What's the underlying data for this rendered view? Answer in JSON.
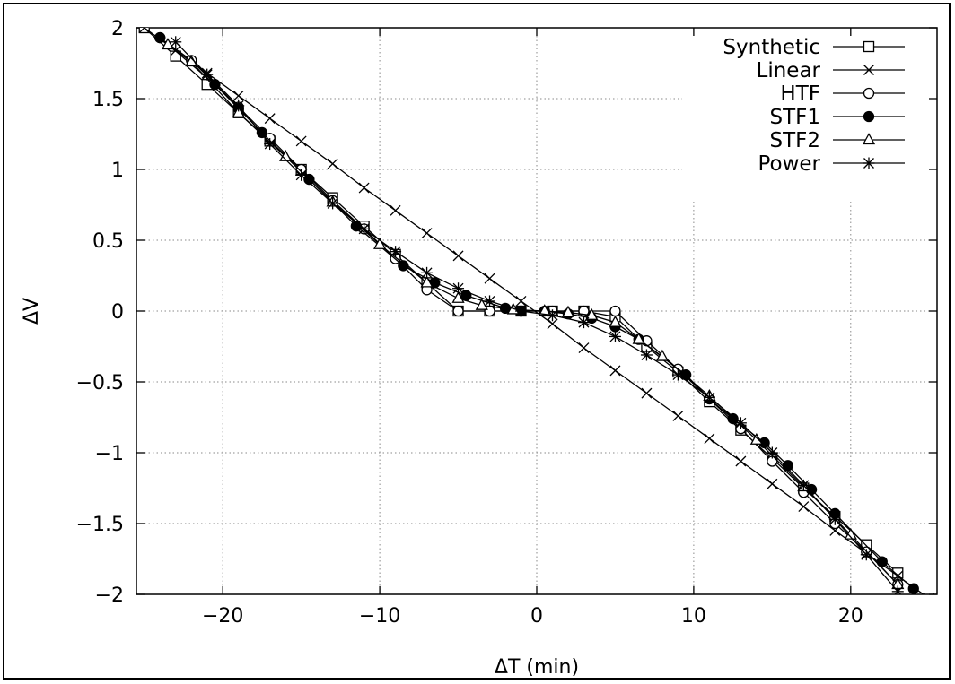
{
  "chart_data": {
    "type": "line",
    "title": "",
    "xlabel": "ΔT (min)",
    "ylabel": "ΔV",
    "xlim": [
      -25.5,
      25.5
    ],
    "ylim": [
      -2,
      2
    ],
    "xticks": [
      -20,
      -10,
      0,
      10,
      20
    ],
    "yticks": [
      2,
      1.5,
      1,
      0.5,
      0,
      -0.5,
      -1,
      -1.5,
      -2
    ],
    "xtick_labels": [
      "−20",
      "−10",
      "0",
      "10",
      "20"
    ],
    "ytick_labels": [
      "2",
      "1.5",
      "1",
      "0.5",
      "0",
      "−0.5",
      "−1",
      "−1.5",
      "−2"
    ],
    "grid": true,
    "legend_position": "top-right",
    "series": [
      {
        "name": "Synthetic",
        "marker": "square",
        "points": [
          [
            -25,
            2
          ],
          [
            -23,
            1.8
          ],
          [
            -21,
            1.6
          ],
          [
            -19,
            1.4
          ],
          [
            -17,
            1.2
          ],
          [
            -15,
            1
          ],
          [
            -13,
            0.8
          ],
          [
            -11,
            0.6
          ],
          [
            -9,
            0.4
          ],
          [
            -7,
            0.2
          ],
          [
            -5,
            0
          ],
          [
            -3,
            0
          ],
          [
            -1,
            0
          ],
          [
            1,
            0
          ],
          [
            3,
            0
          ],
          [
            5,
            -0.04
          ],
          [
            7,
            -0.25
          ],
          [
            9,
            -0.43
          ],
          [
            11,
            -0.64
          ],
          [
            13,
            -0.84
          ],
          [
            15,
            -1.04
          ],
          [
            17,
            -1.25
          ],
          [
            19,
            -1.45
          ],
          [
            21,
            -1.65
          ],
          [
            23,
            -1.85
          ]
        ]
      },
      {
        "name": "Linear",
        "marker": "x",
        "points": [
          [
            -25,
            2
          ],
          [
            -23,
            1.84
          ],
          [
            -21,
            1.68
          ],
          [
            -19,
            1.52
          ],
          [
            -17,
            1.36
          ],
          [
            -15,
            1.2
          ],
          [
            -13,
            1.04
          ],
          [
            -11,
            0.87
          ],
          [
            -9,
            0.71
          ],
          [
            -7,
            0.55
          ],
          [
            -5,
            0.39
          ],
          [
            -3,
            0.23
          ],
          [
            -1,
            0.07
          ],
          [
            1,
            -0.09
          ],
          [
            3,
            -0.26
          ],
          [
            5,
            -0.42
          ],
          [
            7,
            -0.58
          ],
          [
            9,
            -0.74
          ],
          [
            11,
            -0.9
          ],
          [
            13,
            -1.06
          ],
          [
            15,
            -1.22
          ],
          [
            17,
            -1.38
          ],
          [
            19,
            -1.55
          ],
          [
            21,
            -1.71
          ],
          [
            23,
            -1.87
          ],
          [
            25,
            -2.03
          ]
        ]
      },
      {
        "name": "HTF",
        "marker": "circle",
        "points": [
          [
            -24,
            1.93
          ],
          [
            -22,
            1.77
          ],
          [
            -19,
            1.44
          ],
          [
            -17,
            1.22
          ],
          [
            -15,
            1
          ],
          [
            -13,
            0.78
          ],
          [
            -11,
            0.58
          ],
          [
            -9,
            0.37
          ],
          [
            -7,
            0.15
          ],
          [
            -5,
            0
          ],
          [
            -3,
            0
          ],
          [
            -1,
            0
          ],
          [
            1,
            0
          ],
          [
            3,
            0
          ],
          [
            5,
            0
          ],
          [
            7,
            -0.21
          ],
          [
            9,
            -0.41
          ],
          [
            11,
            -0.62
          ],
          [
            13,
            -0.83
          ],
          [
            15,
            -1.06
          ],
          [
            17,
            -1.28
          ],
          [
            19,
            -1.5
          ],
          [
            21,
            -1.7
          ],
          [
            23,
            -1.93
          ]
        ]
      },
      {
        "name": "STF1",
        "marker": "filled-circle",
        "points": [
          [
            -24,
            1.93
          ],
          [
            -20.5,
            1.6
          ],
          [
            -19,
            1.43
          ],
          [
            -17.5,
            1.26
          ],
          [
            -14.5,
            0.93
          ],
          [
            -11.5,
            0.6
          ],
          [
            -8.5,
            0.32
          ],
          [
            -6.5,
            0.2
          ],
          [
            -4.5,
            0.11
          ],
          [
            -2,
            0.02
          ],
          [
            -1,
            0
          ],
          [
            0.5,
            0
          ],
          [
            2,
            -0.02
          ],
          [
            3.5,
            -0.05
          ],
          [
            5,
            -0.11
          ],
          [
            6.5,
            -0.2
          ],
          [
            9.5,
            -0.45
          ],
          [
            11,
            -0.62
          ],
          [
            12.5,
            -0.76
          ],
          [
            14.5,
            -0.93
          ],
          [
            16,
            -1.09
          ],
          [
            17.5,
            -1.26
          ],
          [
            19,
            -1.43
          ],
          [
            22,
            -1.77
          ],
          [
            24,
            -1.96
          ]
        ]
      },
      {
        "name": "STF2",
        "marker": "triangle",
        "points": [
          [
            -23.5,
            1.88
          ],
          [
            -22,
            1.76
          ],
          [
            -19,
            1.4
          ],
          [
            -16,
            1.09
          ],
          [
            -13,
            0.77
          ],
          [
            -10,
            0.47
          ],
          [
            -7,
            0.2
          ],
          [
            -5,
            0.09
          ],
          [
            -3.5,
            0.04
          ],
          [
            -1.5,
            0.01
          ],
          [
            0.5,
            0
          ],
          [
            2,
            -0.01
          ],
          [
            3.5,
            -0.03
          ],
          [
            5,
            -0.08
          ],
          [
            6.5,
            -0.2
          ],
          [
            8,
            -0.32
          ],
          [
            11,
            -0.6
          ],
          [
            14,
            -0.91
          ],
          [
            17,
            -1.24
          ],
          [
            20,
            -1.58
          ],
          [
            23,
            -1.93
          ]
        ]
      },
      {
        "name": "Power",
        "marker": "star",
        "points": [
          [
            -23,
            1.9
          ],
          [
            -21,
            1.67
          ],
          [
            -19,
            1.45
          ],
          [
            -17,
            1.18
          ],
          [
            -15,
            0.96
          ],
          [
            -13,
            0.76
          ],
          [
            -11,
            0.58
          ],
          [
            -9,
            0.42
          ],
          [
            -7,
            0.27
          ],
          [
            -5,
            0.16
          ],
          [
            -3,
            0.07
          ],
          [
            -1,
            0
          ],
          [
            1,
            -0.03
          ],
          [
            3,
            -0.08
          ],
          [
            5,
            -0.18
          ],
          [
            7,
            -0.31
          ],
          [
            9,
            -0.45
          ],
          [
            11,
            -0.61
          ],
          [
            13,
            -0.79
          ],
          [
            15,
            -1
          ],
          [
            17,
            -1.23
          ],
          [
            19,
            -1.47
          ],
          [
            21,
            -1.72
          ],
          [
            23,
            -1.98
          ]
        ]
      }
    ]
  }
}
